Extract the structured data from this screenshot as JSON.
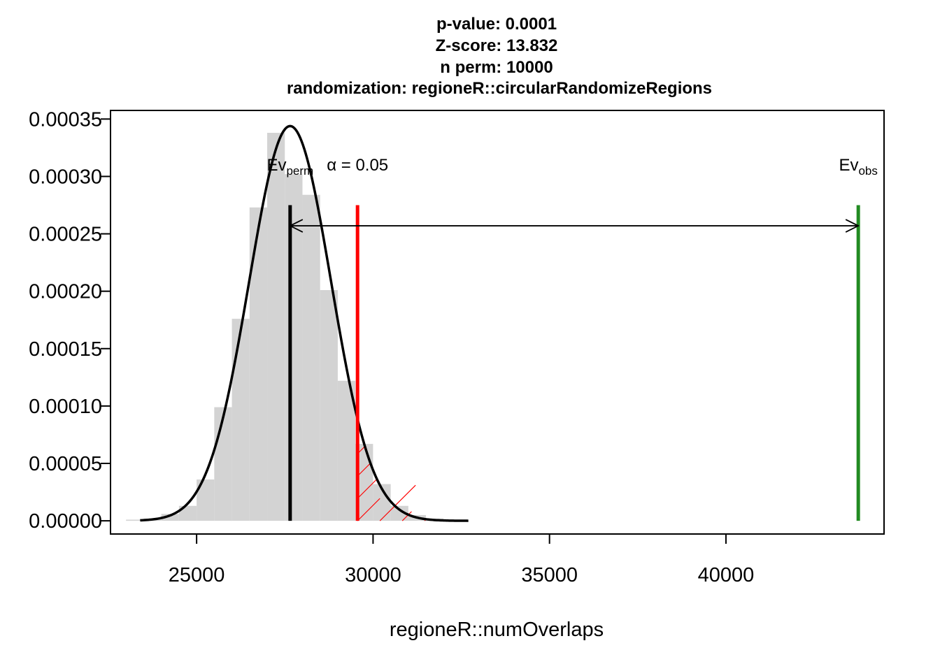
{
  "chart_data": {
    "type": "bar",
    "title_lines": [
      "p-value:  0.0001",
      "Z-score:  13.832",
      "n perm:  10000",
      "randomization:  regioneR::circularRandomizeRegions"
    ],
    "xlabel": "regioneR::numOverlaps",
    "ylabel": "",
    "xlim": [
      22560,
      44480
    ],
    "ylim": [
      -1.15e-05,
      0.0003575
    ],
    "x_ticks": [
      25000,
      30000,
      35000,
      40000
    ],
    "x_tick_labels": [
      "25000",
      "30000",
      "35000",
      "40000"
    ],
    "y_ticks": [
      0,
      5e-05,
      0.0001,
      0.00015,
      0.0002,
      0.00025,
      0.0003,
      0.00035
    ],
    "y_tick_labels": [
      "0.00000",
      "0.00005",
      "0.00010",
      "0.00015",
      "0.00020",
      "0.00025",
      "0.00030",
      "0.00035"
    ],
    "histogram": {
      "bin_width": 500,
      "bins": [
        {
          "start": 23000,
          "density": 1e-06
        },
        {
          "start": 23500,
          "density": 2e-06
        },
        {
          "start": 24000,
          "density": 6e-06
        },
        {
          "start": 24500,
          "density": 1.3e-05
        },
        {
          "start": 25000,
          "density": 3.6e-05
        },
        {
          "start": 25500,
          "density": 9.9e-05
        },
        {
          "start": 26000,
          "density": 0.000176
        },
        {
          "start": 26500,
          "density": 0.000273
        },
        {
          "start": 27000,
          "density": 0.000338
        },
        {
          "start": 27500,
          "density": 0.000302
        },
        {
          "start": 28000,
          "density": 0.000284
        },
        {
          "start": 28500,
          "density": 0.000201
        },
        {
          "start": 29000,
          "density": 0.000122
        },
        {
          "start": 29500,
          "density": 6.7e-05
        },
        {
          "start": 30000,
          "density": 3.2e-05
        },
        {
          "start": 30500,
          "density": 1.3e-05
        },
        {
          "start": 31000,
          "density": 5e-06
        },
        {
          "start": 31500,
          "density": 2e-06
        },
        {
          "start": 32000,
          "density": 1e-06
        }
      ],
      "color": "#d3d3d3"
    },
    "normal_curve": {
      "mean": 27650,
      "sd": 1160,
      "x_range": [
        23400,
        32700
      ],
      "color": "#000000"
    },
    "lines": {
      "ev_perm": {
        "x": 27650,
        "color": "#000000",
        "label": "Ev",
        "label_sub": "perm"
      },
      "alpha": {
        "x": 29560,
        "color": "#ff0000",
        "label": "α = 0.05"
      },
      "ev_obs": {
        "x": 43750,
        "color": "#228b22",
        "label": "Ev",
        "label_sub": "obs"
      }
    },
    "line_top_value": 0.000275,
    "arrow_y_value": 0.000257,
    "shading_color": "#ff0000",
    "grid": false,
    "legend": "none"
  }
}
